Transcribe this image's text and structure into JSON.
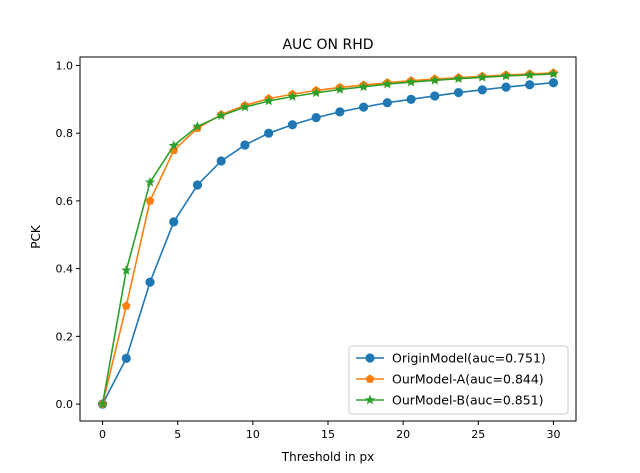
{
  "chart_data": {
    "type": "line",
    "title": "AUC ON RHD",
    "xlabel": "Threshold in px",
    "ylabel": "PCK",
    "xlim": [
      -1.5,
      31.5
    ],
    "ylim": [
      -0.05,
      1.025
    ],
    "xticks": [
      0,
      5,
      10,
      15,
      20,
      25,
      30
    ],
    "yticks": [
      0.0,
      0.2,
      0.4,
      0.6,
      0.8,
      1.0
    ],
    "xtick_labels": [
      "0",
      "5",
      "10",
      "15",
      "20",
      "25",
      "30"
    ],
    "ytick_labels": [
      "0.0",
      "0.2",
      "0.4",
      "0.6",
      "0.8",
      "1.0"
    ],
    "grid": false,
    "legend_position": "bottom-right",
    "x": [
      0,
      1.579,
      3.158,
      4.737,
      6.316,
      7.895,
      9.474,
      11.053,
      12.632,
      14.211,
      15.789,
      17.368,
      18.947,
      20.526,
      22.105,
      23.684,
      25.263,
      26.842,
      28.421,
      30
    ],
    "series": [
      {
        "name": "OriginModel(auc=0.751)",
        "color": "#1f77b4",
        "marker": "circle",
        "values": [
          0.0,
          0.135,
          0.36,
          0.538,
          0.647,
          0.718,
          0.765,
          0.8,
          0.825,
          0.846,
          0.863,
          0.877,
          0.89,
          0.9,
          0.91,
          0.92,
          0.928,
          0.936,
          0.943,
          0.949
        ]
      },
      {
        "name": "OurModel-A(auc=0.844)",
        "color": "#ff7f0e",
        "marker": "pentagon",
        "values": [
          0.0,
          0.29,
          0.6,
          0.749,
          0.815,
          0.855,
          0.882,
          0.902,
          0.915,
          0.926,
          0.935,
          0.942,
          0.949,
          0.955,
          0.96,
          0.964,
          0.968,
          0.972,
          0.975,
          0.978
        ]
      },
      {
        "name": "OurModel-B(auc=0.851)",
        "color": "#2ca02c",
        "marker": "star",
        "values": [
          0.0,
          0.395,
          0.655,
          0.763,
          0.82,
          0.852,
          0.877,
          0.895,
          0.908,
          0.919,
          0.929,
          0.937,
          0.945,
          0.951,
          0.956,
          0.961,
          0.965,
          0.969,
          0.972,
          0.975
        ]
      }
    ]
  }
}
